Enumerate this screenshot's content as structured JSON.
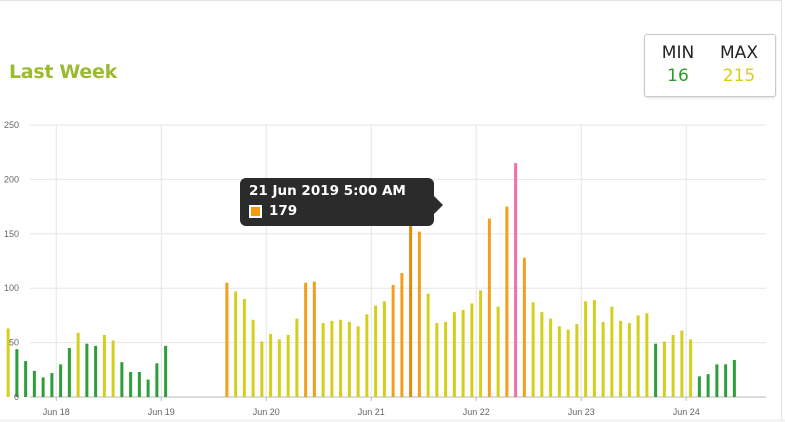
{
  "header": {
    "title": "Last Week"
  },
  "minmax": {
    "min_label": "MIN",
    "min_value": "16",
    "max_label": "MAX",
    "max_value": "215",
    "min_color": "#2c9c2c",
    "max_color": "#d5cf1a"
  },
  "tooltip": {
    "title": "21 Jun 2019 5:00 AM",
    "value": "179",
    "swatch_color": "#f39c12"
  },
  "colors": {
    "green": "#2e9e3a",
    "yellow": "#d4cf1d",
    "orange": "#f0a11b",
    "dark_orange": "#e08a0c",
    "pink": "#f06fa8",
    "grid": "#e6e6e6",
    "axis": "#666666"
  },
  "chart_data": {
    "type": "bar",
    "title": "",
    "xlabel": "",
    "ylabel": "",
    "ylim": [
      0,
      250
    ],
    "y_ticks": [
      "0",
      "50",
      "100",
      "150",
      "200",
      "250"
    ],
    "x_ticks": [
      "Jun 18",
      "Jun 19",
      "Jun 20",
      "Jun 21",
      "Jun 22",
      "Jun 23",
      "Jun 24"
    ],
    "grid": true,
    "legend": "none",
    "series": [
      {
        "values": [
          {
            "time": "2019-06-17 13:00",
            "value": 63,
            "color": "yellow"
          },
          {
            "time": "2019-06-17 15:00",
            "value": 44,
            "color": "green"
          },
          {
            "time": "2019-06-17 17:00",
            "value": 33,
            "color": "green"
          },
          {
            "time": "2019-06-17 19:00",
            "value": 24,
            "color": "green"
          },
          {
            "time": "2019-06-17 21:00",
            "value": 18,
            "color": "green"
          },
          {
            "time": "2019-06-17 23:00",
            "value": 22,
            "color": "green"
          },
          {
            "time": "2019-06-18 01:00",
            "value": 30,
            "color": "green"
          },
          {
            "time": "2019-06-18 03:00",
            "value": 45,
            "color": "green"
          },
          {
            "time": "2019-06-18 05:00",
            "value": 59,
            "color": "yellow"
          },
          {
            "time": "2019-06-18 07:00",
            "value": 49,
            "color": "green"
          },
          {
            "time": "2019-06-18 09:00",
            "value": 47,
            "color": "green"
          },
          {
            "time": "2019-06-18 11:00",
            "value": 57,
            "color": "yellow"
          },
          {
            "time": "2019-06-18 13:00",
            "value": 52,
            "color": "yellow"
          },
          {
            "time": "2019-06-18 15:00",
            "value": 32,
            "color": "green"
          },
          {
            "time": "2019-06-18 17:00",
            "value": 23,
            "color": "green"
          },
          {
            "time": "2019-06-18 19:00",
            "value": 23,
            "color": "green"
          },
          {
            "time": "2019-06-18 21:00",
            "value": 16,
            "color": "green"
          },
          {
            "time": "2019-06-18 23:00",
            "value": 31,
            "color": "green"
          },
          {
            "time": "2019-06-19 01:00",
            "value": 47,
            "color": "green"
          },
          {
            "time": "2019-06-19 15:00",
            "value": 105,
            "color": "orange"
          },
          {
            "time": "2019-06-19 17:00",
            "value": 97,
            "color": "yellow"
          },
          {
            "time": "2019-06-19 19:00",
            "value": 90,
            "color": "yellow"
          },
          {
            "time": "2019-06-19 21:00",
            "value": 71,
            "color": "yellow"
          },
          {
            "time": "2019-06-19 23:00",
            "value": 51,
            "color": "yellow"
          },
          {
            "time": "2019-06-20 01:00",
            "value": 58,
            "color": "yellow"
          },
          {
            "time": "2019-06-20 03:00",
            "value": 53,
            "color": "yellow"
          },
          {
            "time": "2019-06-20 05:00",
            "value": 57,
            "color": "yellow"
          },
          {
            "time": "2019-06-20 07:00",
            "value": 72,
            "color": "yellow"
          },
          {
            "time": "2019-06-20 09:00",
            "value": 105,
            "color": "orange"
          },
          {
            "time": "2019-06-20 11:00",
            "value": 106,
            "color": "orange"
          },
          {
            "time": "2019-06-20 13:00",
            "value": 68,
            "color": "yellow"
          },
          {
            "time": "2019-06-20 15:00",
            "value": 70,
            "color": "yellow"
          },
          {
            "time": "2019-06-20 17:00",
            "value": 71,
            "color": "yellow"
          },
          {
            "time": "2019-06-20 19:00",
            "value": 69,
            "color": "yellow"
          },
          {
            "time": "2019-06-20 21:00",
            "value": 65,
            "color": "yellow"
          },
          {
            "time": "2019-06-20 23:00",
            "value": 76,
            "color": "yellow"
          },
          {
            "time": "2019-06-21 01:00",
            "value": 84,
            "color": "yellow"
          },
          {
            "time": "2019-06-21 03:00",
            "value": 88,
            "color": "yellow"
          },
          {
            "time": "2019-06-21 05:00",
            "value": 103,
            "color": "orange"
          },
          {
            "time": "2019-06-21 07:00",
            "value": 114,
            "color": "orange"
          },
          {
            "time": "2019-06-21 09:00",
            "value": 179,
            "color": "dark_orange"
          },
          {
            "time": "2019-06-21 11:00",
            "value": 152,
            "color": "orange"
          },
          {
            "time": "2019-06-21 13:00",
            "value": 95,
            "color": "yellow"
          },
          {
            "time": "2019-06-21 15:00",
            "value": 68,
            "color": "yellow"
          },
          {
            "time": "2019-06-21 17:00",
            "value": 69,
            "color": "yellow"
          },
          {
            "time": "2019-06-21 19:00",
            "value": 78,
            "color": "yellow"
          },
          {
            "time": "2019-06-21 21:00",
            "value": 80,
            "color": "yellow"
          },
          {
            "time": "2019-06-21 23:00",
            "value": 86,
            "color": "yellow"
          },
          {
            "time": "2019-06-22 01:00",
            "value": 98,
            "color": "yellow"
          },
          {
            "time": "2019-06-22 03:00",
            "value": 164,
            "color": "orange"
          },
          {
            "time": "2019-06-22 05:00",
            "value": 83,
            "color": "yellow"
          },
          {
            "time": "2019-06-22 07:00",
            "value": 175,
            "color": "orange"
          },
          {
            "time": "2019-06-22 09:00",
            "value": 215,
            "color": "pink"
          },
          {
            "time": "2019-06-22 11:00",
            "value": 128,
            "color": "orange"
          },
          {
            "time": "2019-06-22 13:00",
            "value": 87,
            "color": "yellow"
          },
          {
            "time": "2019-06-22 15:00",
            "value": 78,
            "color": "yellow"
          },
          {
            "time": "2019-06-22 17:00",
            "value": 72,
            "color": "yellow"
          },
          {
            "time": "2019-06-22 19:00",
            "value": 65,
            "color": "yellow"
          },
          {
            "time": "2019-06-22 21:00",
            "value": 62,
            "color": "yellow"
          },
          {
            "time": "2019-06-22 23:00",
            "value": 67,
            "color": "yellow"
          },
          {
            "time": "2019-06-23 01:00",
            "value": 88,
            "color": "yellow"
          },
          {
            "time": "2019-06-23 03:00",
            "value": 89,
            "color": "yellow"
          },
          {
            "time": "2019-06-23 05:00",
            "value": 69,
            "color": "yellow"
          },
          {
            "time": "2019-06-23 07:00",
            "value": 83,
            "color": "yellow"
          },
          {
            "time": "2019-06-23 09:00",
            "value": 70,
            "color": "yellow"
          },
          {
            "time": "2019-06-23 11:00",
            "value": 68,
            "color": "yellow"
          },
          {
            "time": "2019-06-23 13:00",
            "value": 75,
            "color": "yellow"
          },
          {
            "time": "2019-06-23 15:00",
            "value": 77,
            "color": "yellow"
          },
          {
            "time": "2019-06-23 17:00",
            "value": 49,
            "color": "green"
          },
          {
            "time": "2019-06-23 19:00",
            "value": 51,
            "color": "yellow"
          },
          {
            "time": "2019-06-23 21:00",
            "value": 57,
            "color": "yellow"
          },
          {
            "time": "2019-06-23 23:00",
            "value": 61,
            "color": "yellow"
          },
          {
            "time": "2019-06-24 01:00",
            "value": 53,
            "color": "yellow"
          },
          {
            "time": "2019-06-24 03:00",
            "value": 19,
            "color": "green"
          },
          {
            "time": "2019-06-24 05:00",
            "value": 21,
            "color": "green"
          },
          {
            "time": "2019-06-24 07:00",
            "value": 30,
            "color": "green"
          },
          {
            "time": "2019-06-24 09:00",
            "value": 30,
            "color": "green"
          },
          {
            "time": "2019-06-24 11:00",
            "value": 34,
            "color": "green"
          }
        ]
      }
    ]
  }
}
